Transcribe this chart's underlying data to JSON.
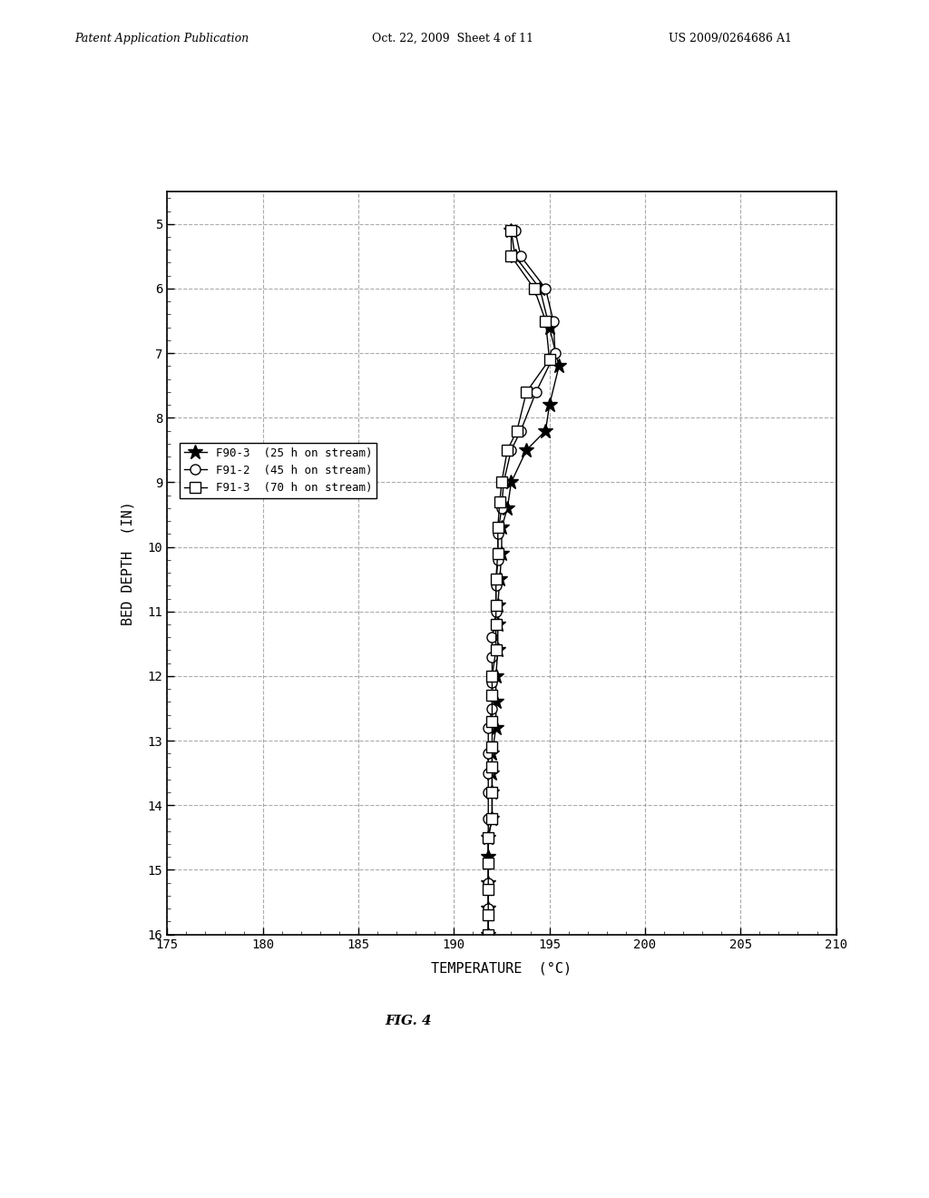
{
  "title": "",
  "xlabel": "TEMPERATURE  (°C)",
  "ylabel": "BED DEPTH  (IN)",
  "xlim": [
    175,
    210
  ],
  "ylim": [
    16,
    4.5
  ],
  "xticks": [
    175,
    180,
    185,
    190,
    195,
    200,
    205,
    210
  ],
  "yticks": [
    5,
    6,
    7,
    8,
    9,
    10,
    11,
    12,
    13,
    14,
    15,
    16
  ],
  "background_color": "#ffffff",
  "grid_color": "#888888",
  "series": [
    {
      "label": "F90-3  (25 h on stream)",
      "marker": "*",
      "color": "#000000",
      "depth": [
        5.1,
        5.5,
        6.0,
        6.6,
        7.2,
        7.8,
        8.2,
        8.5,
        9.0,
        9.4,
        9.7,
        10.1,
        10.5,
        10.9,
        11.2,
        11.6,
        12.0,
        12.4,
        12.8,
        13.2,
        13.5,
        13.8,
        14.2,
        14.5,
        14.8,
        15.2,
        15.6,
        16.0
      ],
      "temp": [
        193.0,
        193.2,
        194.5,
        195.0,
        195.5,
        195.0,
        194.8,
        193.8,
        193.0,
        192.8,
        192.5,
        192.5,
        192.4,
        192.3,
        192.3,
        192.3,
        192.2,
        192.2,
        192.2,
        192.0,
        192.0,
        192.0,
        192.0,
        191.8,
        191.8,
        191.8,
        191.8,
        191.8
      ]
    },
    {
      "label": "F91-2  (45 h on stream)",
      "marker": "o",
      "color": "#000000",
      "depth": [
        5.1,
        5.5,
        6.0,
        6.5,
        7.0,
        7.6,
        8.2,
        8.5,
        9.0,
        9.4,
        9.8,
        10.2,
        10.6,
        11.0,
        11.4,
        11.7,
        12.1,
        12.5,
        12.8,
        13.2,
        13.5,
        13.8,
        14.2,
        14.5,
        14.9,
        15.2,
        15.6,
        16.0
      ],
      "temp": [
        193.2,
        193.5,
        194.8,
        195.2,
        195.3,
        194.3,
        193.5,
        193.0,
        192.6,
        192.5,
        192.3,
        192.3,
        192.2,
        192.2,
        192.0,
        192.0,
        192.0,
        192.0,
        191.8,
        191.8,
        191.8,
        191.8,
        191.8,
        191.8,
        191.8,
        191.8,
        191.8,
        191.8
      ]
    },
    {
      "label": "F91-3  (70 h on stream)",
      "marker": "s",
      "color": "#000000",
      "depth": [
        5.1,
        5.5,
        6.0,
        6.5,
        7.1,
        7.6,
        8.2,
        8.5,
        9.0,
        9.3,
        9.7,
        10.1,
        10.5,
        10.9,
        11.2,
        11.6,
        12.0,
        12.3,
        12.7,
        13.1,
        13.4,
        13.8,
        14.2,
        14.5,
        14.9,
        15.3,
        15.7,
        16.0
      ],
      "temp": [
        193.0,
        193.0,
        194.2,
        194.8,
        195.0,
        193.8,
        193.3,
        192.8,
        192.5,
        192.4,
        192.3,
        192.3,
        192.2,
        192.2,
        192.2,
        192.2,
        192.0,
        192.0,
        192.0,
        192.0,
        192.0,
        192.0,
        192.0,
        191.8,
        191.8,
        191.8,
        191.8,
        191.8
      ]
    }
  ],
  "header_left": "Patent Application Publication",
  "header_center": "Oct. 22, 2009  Sheet 4 of 11",
  "header_right": "US 2009/0264686 A1",
  "fig_label": "FIG. 4",
  "marker_sizes": [
    12,
    8,
    8
  ]
}
